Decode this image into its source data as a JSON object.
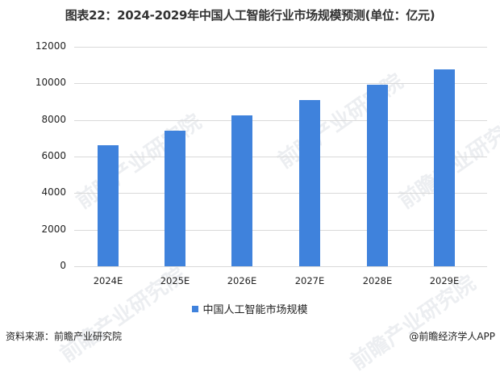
{
  "title": "图表22：2024-2029年中国人工智能行业市场规模预测(单位：亿元)",
  "chart_data": {
    "type": "bar",
    "title": "图表22：2024-2029年中国人工智能行业市场规模预测(单位：亿元)",
    "categories": [
      "2024E",
      "2025E",
      "2026E",
      "2027E",
      "2028E",
      "2029E"
    ],
    "series": [
      {
        "name": "中国人工智能市场规模",
        "values": [
          6620,
          7410,
          8250,
          9090,
          9925,
          10760
        ],
        "color": "#3f82dc"
      }
    ],
    "xlabel": "",
    "ylabel": "",
    "ylim": [
      0,
      12000
    ],
    "yticks": [
      0,
      2000,
      4000,
      6000,
      8000,
      10000,
      12000
    ],
    "grid": true,
    "legend_position": "bottom"
  },
  "yticks": [
    "0",
    "2000",
    "4000",
    "6000",
    "8000",
    "10000",
    "12000"
  ],
  "legend": {
    "label": "中国人工智能市场规模"
  },
  "footer": {
    "source": "资料来源：前瞻产业研究院",
    "credit": "@前瞻经济学人APP"
  },
  "watermark": "前瞻产业研究院"
}
